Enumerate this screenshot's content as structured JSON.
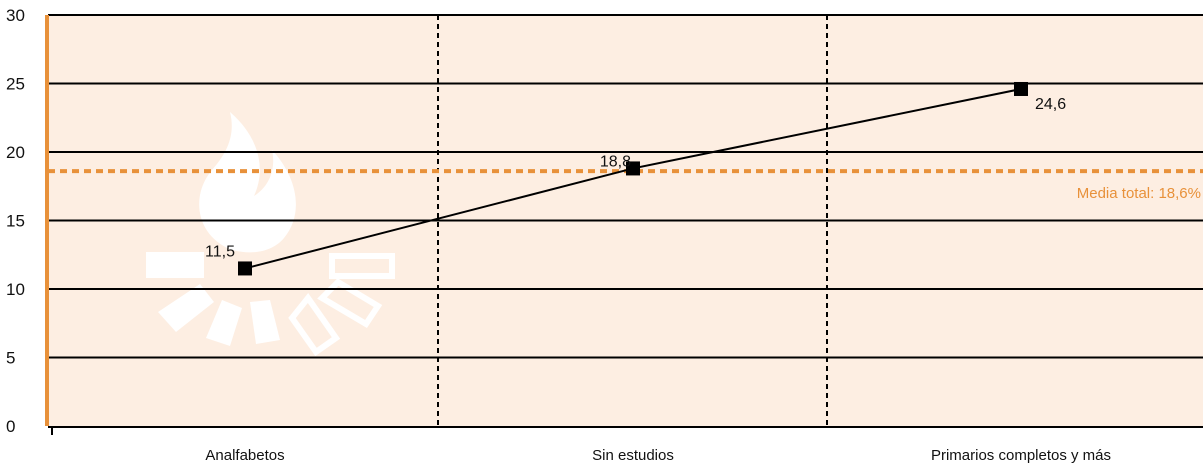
{
  "colors": {
    "plot_background": "#fdeee2",
    "accent": "#e8913a",
    "line": "#000000",
    "grid": "#000000",
    "watermark": "#ffffff"
  },
  "chart_data": {
    "type": "line",
    "categories": [
      "Analfabetos",
      "Sin estudios",
      "Primarios completos y más"
    ],
    "series": [
      {
        "values": [
          11.5,
          18.8,
          24.6
        ]
      }
    ],
    "data_labels": [
      "11,5",
      "18,8",
      "24,6"
    ],
    "reference_line": {
      "value": 18.6,
      "label": "Media total: 18,6%"
    },
    "ylim": [
      0,
      30
    ],
    "yticks": [
      0,
      5,
      10,
      15,
      20,
      25,
      30
    ],
    "ytick_labels": [
      "0",
      "5",
      "10",
      "15",
      "20",
      "25",
      "30"
    ],
    "grid": true,
    "marker": "square",
    "watermark_icon": "flame-logo-icon"
  }
}
